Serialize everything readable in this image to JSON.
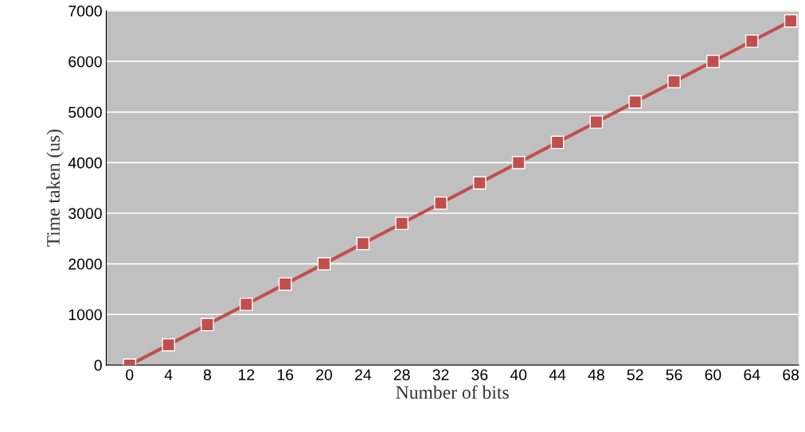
{
  "chart_data": {
    "type": "line",
    "xlabel": "Number of bits",
    "ylabel": "Time taken (us)",
    "categories": [
      "0",
      "4",
      "8",
      "12",
      "16",
      "20",
      "24",
      "28",
      "32",
      "36",
      "40",
      "44",
      "48",
      "52",
      "56",
      "60",
      "64",
      "68"
    ],
    "series": [
      {
        "color": "#c0504d",
        "values": [
          0,
          400,
          800,
          1200,
          1600,
          2000,
          2400,
          2800,
          3200,
          3600,
          4000,
          4400,
          4800,
          5200,
          5600,
          6000,
          6400,
          6800
        ]
      }
    ],
    "ylim": [
      0,
      7000
    ],
    "yticks": [
      0,
      1000,
      2000,
      3000,
      4000,
      5000,
      6000,
      7000
    ],
    "grid": "y",
    "marker": "square",
    "line_style": "solid",
    "legend": false
  }
}
